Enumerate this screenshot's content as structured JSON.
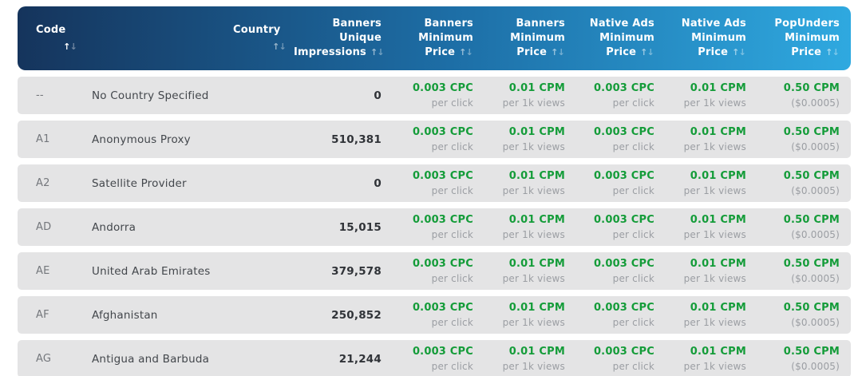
{
  "theme": {
    "header_gradient_start": "#15345c",
    "header_gradient_end": "#2fa9e0",
    "row_bg": "#e4e4e5",
    "price_green": "#149c39",
    "note_gray": "#9b9ea3",
    "header_text": "#ffffff"
  },
  "table": {
    "sort_icon": {
      "up": "↑",
      "down": "↓"
    },
    "columns": [
      {
        "label": "Code",
        "sort_state": "asc"
      },
      {
        "label": "Country",
        "sort_state": "none"
      },
      {
        "label": "Banners Unique Impressions",
        "sort_state": "none"
      },
      {
        "label": "Banners Minimum Price",
        "sort_state": "none"
      },
      {
        "label": "Banners Minimum Price",
        "sort_state": "none"
      },
      {
        "label": "Native Ads Minimum Price",
        "sort_state": "none"
      },
      {
        "label": "Native Ads Minimum Price",
        "sort_state": "none"
      },
      {
        "label": "PopUnders Minimum Price",
        "sort_state": "none"
      }
    ],
    "rows": [
      {
        "code": "--",
        "country": "No Country Specified",
        "impressions": "0",
        "banners_cpc": {
          "value": "0.003 CPC",
          "unit": "per click"
        },
        "banners_cpm": {
          "value": "0.01 CPM",
          "unit": "per 1k views"
        },
        "native_cpc": {
          "value": "0.003 CPC",
          "unit": "per click"
        },
        "native_cpm": {
          "value": "0.01 CPM",
          "unit": "per 1k views"
        },
        "popunders": {
          "value": "0.50 CPM",
          "unit": "($0.0005)"
        }
      },
      {
        "code": "A1",
        "country": "Anonymous Proxy",
        "impressions": "510,381",
        "banners_cpc": {
          "value": "0.003 CPC",
          "unit": "per click"
        },
        "banners_cpm": {
          "value": "0.01 CPM",
          "unit": "per 1k views"
        },
        "native_cpc": {
          "value": "0.003 CPC",
          "unit": "per click"
        },
        "native_cpm": {
          "value": "0.01 CPM",
          "unit": "per 1k views"
        },
        "popunders": {
          "value": "0.50 CPM",
          "unit": "($0.0005)"
        }
      },
      {
        "code": "A2",
        "country": "Satellite Provider",
        "impressions": "0",
        "banners_cpc": {
          "value": "0.003 CPC",
          "unit": "per click"
        },
        "banners_cpm": {
          "value": "0.01 CPM",
          "unit": "per 1k views"
        },
        "native_cpc": {
          "value": "0.003 CPC",
          "unit": "per click"
        },
        "native_cpm": {
          "value": "0.01 CPM",
          "unit": "per 1k views"
        },
        "popunders": {
          "value": "0.50 CPM",
          "unit": "($0.0005)"
        }
      },
      {
        "code": "AD",
        "country": "Andorra",
        "impressions": "15,015",
        "banners_cpc": {
          "value": "0.003 CPC",
          "unit": "per click"
        },
        "banners_cpm": {
          "value": "0.01 CPM",
          "unit": "per 1k views"
        },
        "native_cpc": {
          "value": "0.003 CPC",
          "unit": "per click"
        },
        "native_cpm": {
          "value": "0.01 CPM",
          "unit": "per 1k views"
        },
        "popunders": {
          "value": "0.50 CPM",
          "unit": "($0.0005)"
        }
      },
      {
        "code": "AE",
        "country": "United Arab Emirates",
        "impressions": "379,578",
        "banners_cpc": {
          "value": "0.003 CPC",
          "unit": "per click"
        },
        "banners_cpm": {
          "value": "0.01 CPM",
          "unit": "per 1k views"
        },
        "native_cpc": {
          "value": "0.003 CPC",
          "unit": "per click"
        },
        "native_cpm": {
          "value": "0.01 CPM",
          "unit": "per 1k views"
        },
        "popunders": {
          "value": "0.50 CPM",
          "unit": "($0.0005)"
        }
      },
      {
        "code": "AF",
        "country": "Afghanistan",
        "impressions": "250,852",
        "banners_cpc": {
          "value": "0.003 CPC",
          "unit": "per click"
        },
        "banners_cpm": {
          "value": "0.01 CPM",
          "unit": "per 1k views"
        },
        "native_cpc": {
          "value": "0.003 CPC",
          "unit": "per click"
        },
        "native_cpm": {
          "value": "0.01 CPM",
          "unit": "per 1k views"
        },
        "popunders": {
          "value": "0.50 CPM",
          "unit": "($0.0005)"
        }
      },
      {
        "code": "AG",
        "country": "Antigua and Barbuda",
        "impressions": "21,244",
        "banners_cpc": {
          "value": "0.003 CPC",
          "unit": "per click"
        },
        "banners_cpm": {
          "value": "0.01 CPM",
          "unit": "per 1k views"
        },
        "native_cpc": {
          "value": "0.003 CPC",
          "unit": "per click"
        },
        "native_cpm": {
          "value": "0.01 CPM",
          "unit": "per 1k views"
        },
        "popunders": {
          "value": "0.50 CPM",
          "unit": "($0.0005)"
        }
      }
    ]
  }
}
